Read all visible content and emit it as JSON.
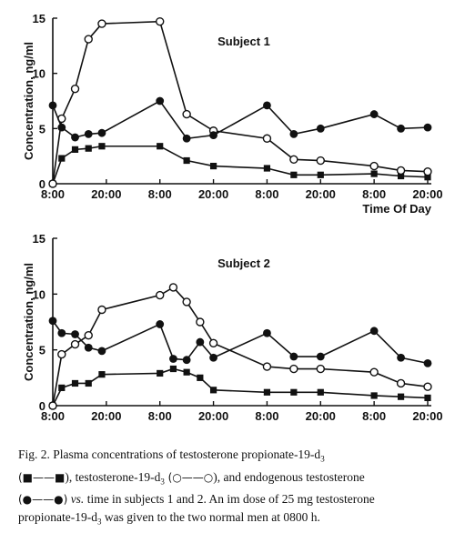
{
  "chart_data": [
    {
      "type": "line",
      "title": "Subject  1",
      "ylabel": "Concentration, ng/ml",
      "xlabel": "Time Of Day",
      "x_tick_labels": [
        "8:00",
        "20:00",
        "8:00",
        "20:00",
        "8:00",
        "20:00",
        "8:00",
        "20:00"
      ],
      "x_tick_hours": [
        0,
        12,
        24,
        36,
        48,
        60,
        72,
        84
      ],
      "y_ticks": [
        0,
        5,
        10,
        15
      ],
      "ylim": [
        0,
        15
      ],
      "xlim": [
        0,
        84
      ],
      "x_unit": "hours after 8:00 on day 1",
      "series": [
        {
          "marker": "filled-square",
          "x": [
            0,
            2,
            5,
            8,
            11,
            24,
            30,
            36,
            48,
            54,
            60,
            72,
            78,
            84
          ],
          "values": [
            0,
            2.3,
            3.1,
            3.2,
            3.4,
            3.4,
            2.1,
            1.6,
            1.4,
            0.8,
            0.8,
            0.9,
            0.7,
            0.6
          ]
        },
        {
          "marker": "open-circle",
          "x": [
            0,
            2,
            5,
            8,
            11,
            24,
            30,
            36,
            48,
            54,
            60,
            72,
            78,
            84
          ],
          "values": [
            0,
            5.9,
            8.6,
            13.1,
            14.5,
            14.7,
            6.3,
            4.8,
            4.1,
            2.2,
            2.1,
            1.6,
            1.2,
            1.1
          ]
        },
        {
          "marker": "filled-circle",
          "x": [
            0,
            2,
            5,
            8,
            11,
            24,
            30,
            36,
            48,
            54,
            60,
            72,
            78,
            84
          ],
          "values": [
            7.1,
            5.1,
            4.2,
            4.5,
            4.6,
            7.5,
            4.1,
            4.4,
            7.1,
            4.5,
            5.0,
            6.3,
            5.0,
            5.1
          ]
        }
      ]
    },
    {
      "type": "line",
      "title": "Subject  2",
      "ylabel": "Concentration, ng/ml",
      "x_tick_labels": [
        "8:00",
        "20:00",
        "8:00",
        "20:00",
        "8:00",
        "20:00",
        "8:00",
        "20:00"
      ],
      "x_tick_hours": [
        0,
        12,
        24,
        36,
        48,
        60,
        72,
        84
      ],
      "y_ticks": [
        0,
        5,
        10,
        15
      ],
      "ylim": [
        0,
        15
      ],
      "xlim": [
        0,
        84
      ],
      "x_unit": "hours after 8:00 on day 1",
      "series": [
        {
          "marker": "filled-square",
          "x": [
            0,
            2,
            5,
            8,
            11,
            24,
            27,
            30,
            33,
            36,
            48,
            54,
            60,
            72,
            78,
            84
          ],
          "values": [
            0,
            1.6,
            2.0,
            2.0,
            2.8,
            2.9,
            3.3,
            3.0,
            2.5,
            1.4,
            1.2,
            1.2,
            1.2,
            0.9,
            0.8,
            0.7
          ]
        },
        {
          "marker": "open-circle",
          "x": [
            0,
            2,
            5,
            8,
            11,
            24,
            27,
            30,
            33,
            36,
            48,
            54,
            60,
            72,
            78,
            84
          ],
          "values": [
            0,
            4.6,
            5.5,
            6.3,
            8.6,
            9.9,
            10.6,
            9.3,
            7.5,
            5.6,
            3.5,
            3.3,
            3.3,
            3.0,
            2.0,
            1.7
          ]
        },
        {
          "marker": "filled-circle",
          "x": [
            0,
            2,
            5,
            8,
            11,
            24,
            27,
            30,
            33,
            36,
            48,
            54,
            60,
            72,
            78,
            84
          ],
          "values": [
            7.6,
            6.5,
            6.4,
            5.2,
            4.9,
            7.3,
            4.2,
            4.1,
            5.7,
            4.3,
            6.5,
            4.4,
            4.4,
            6.7,
            4.3,
            3.8
          ]
        }
      ]
    }
  ],
  "caption": {
    "fig_label": "Fig. 2.",
    "line1": "Plasma concentrations of testosterone propionate-19-d",
    "line2": "), testosterone-19-d",
    "line3": "), and endogenous testosterone",
    "line4": "time in subjects 1 and 2. An im dose of 25 mg testosterone",
    "line5": "propionate-19-d",
    "line6": " was given to the two normal men at 0800 h.",
    "vs": "vs.",
    "subscript": "3",
    "legend_square": "(■——■",
    "legend_open": " (○——○",
    "legend_filled": "(●——●)"
  }
}
